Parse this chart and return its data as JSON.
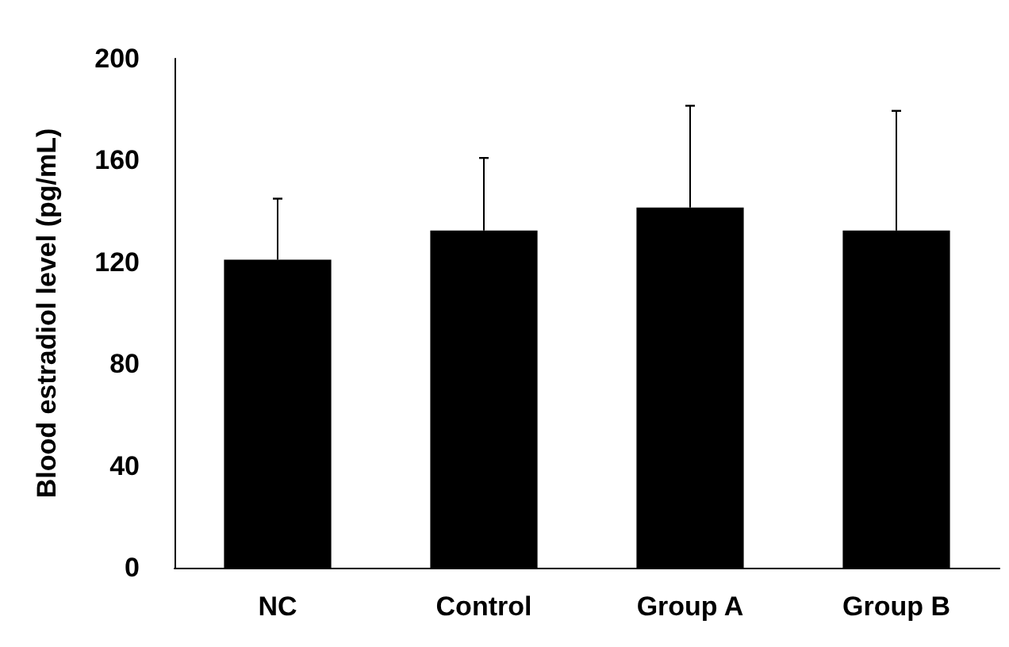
{
  "chart_data": {
    "type": "bar",
    "ylabel": "Blood estradiol level (pg/mL)",
    "categories": [
      "NC",
      "Control",
      "Group A",
      "Group B"
    ],
    "values": [
      121,
      132.5,
      141.5,
      132.5
    ],
    "errors": [
      [
        121,
        145
      ],
      [
        132.5,
        161
      ],
      [
        141.5,
        181.5
      ],
      [
        132.5,
        179.5
      ]
    ],
    "color": "#000000",
    "ylim": [
      0,
      200
    ],
    "yticks": [
      0,
      40,
      80,
      120,
      160,
      200
    ],
    "grid": false
  }
}
